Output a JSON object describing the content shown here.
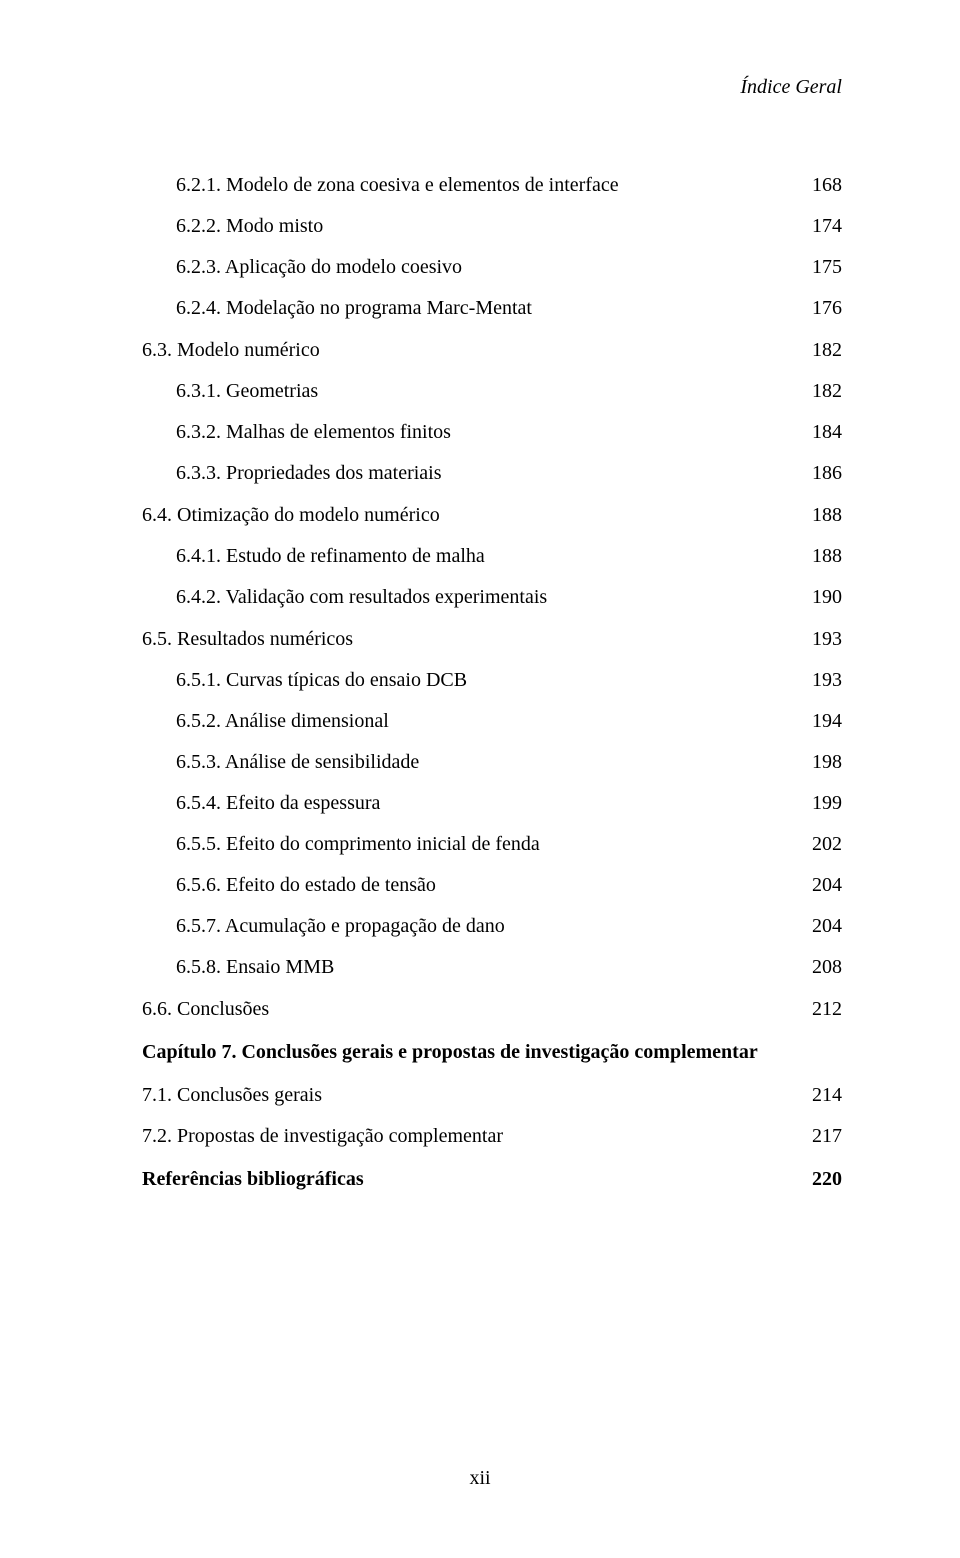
{
  "header": {
    "running_title": "Índice Geral"
  },
  "toc": [
    {
      "indent": 2,
      "label": "6.2.1. Modelo de zona coesiva e elementos de interface",
      "page": "168"
    },
    {
      "indent": 2,
      "label": "6.2.2. Modo misto",
      "page": "174"
    },
    {
      "indent": 2,
      "label": "6.2.3. Aplicação do modelo coesivo",
      "page": "175"
    },
    {
      "indent": 2,
      "label": "6.2.4. Modelação no programa Marc-Mentat",
      "page": "176"
    },
    {
      "indent": 1,
      "label": "6.3. Modelo numérico",
      "page": "182",
      "gap": true
    },
    {
      "indent": 2,
      "label": "6.3.1. Geometrias",
      "page": "182"
    },
    {
      "indent": 2,
      "label": "6.3.2. Malhas de elementos finitos",
      "page": "184"
    },
    {
      "indent": 2,
      "label": "6.3.3. Propriedades dos materiais",
      "page": "186"
    },
    {
      "indent": 1,
      "label": "6.4. Otimização do modelo numérico",
      "page": "188",
      "gap": true
    },
    {
      "indent": 2,
      "label": "6.4.1. Estudo de refinamento de malha",
      "page": "188"
    },
    {
      "indent": 2,
      "label": "6.4.2. Validação com resultados experimentais",
      "page": "190"
    },
    {
      "indent": 1,
      "label": "6.5. Resultados numéricos",
      "page": "193",
      "gap": true
    },
    {
      "indent": 2,
      "label": "6.5.1. Curvas típicas do ensaio DCB",
      "page": "193"
    },
    {
      "indent": 2,
      "label": "6.5.2. Análise dimensional",
      "page": "194"
    },
    {
      "indent": 2,
      "label": "6.5.3. Análise de sensibilidade",
      "page": "198"
    },
    {
      "indent": 2,
      "label": "6.5.4. Efeito da espessura",
      "page": "199"
    },
    {
      "indent": 2,
      "label": "6.5.5. Efeito do comprimento inicial de fenda",
      "page": "202"
    },
    {
      "indent": 2,
      "label": "6.5.6. Efeito do estado de tensão",
      "page": "204"
    },
    {
      "indent": 2,
      "label": "6.5.7. Acumulação e propagação de dano",
      "page": "204"
    },
    {
      "indent": 2,
      "label": "6.5.8. Ensaio MMB",
      "page": "208"
    },
    {
      "indent": 1,
      "label": "6.6. Conclusões",
      "page": "212",
      "gap": true
    }
  ],
  "chapter7": {
    "title": "Capítulo 7. Conclusões gerais e propostas de investigação complementar",
    "items": [
      {
        "label": "7.1. Conclusões gerais",
        "page": "214"
      },
      {
        "label": "7.2. Propostas de investigação complementar",
        "page": "217"
      }
    ]
  },
  "references": {
    "label": "Referências bibliográficas",
    "page": "220"
  },
  "footer": {
    "page_number": "xii"
  },
  "style": {
    "font_family": "Times New Roman",
    "body_fontsize_pt": 15,
    "text_color": "#000000",
    "background_color": "#ffffff"
  }
}
